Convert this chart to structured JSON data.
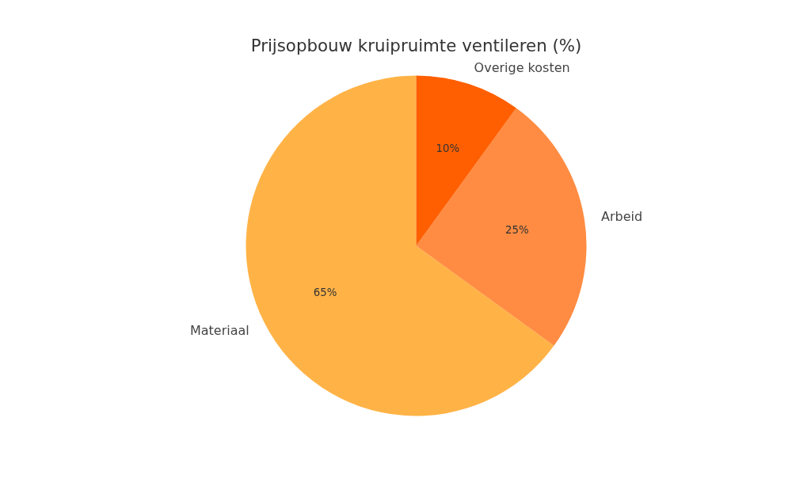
{
  "chart_data": {
    "type": "pie",
    "title": "Prijsopbouw kruipruimte ventileren (%)",
    "categories": [
      "Materiaal",
      "Arbeid",
      "Overige kosten"
    ],
    "values": [
      65,
      25,
      10
    ],
    "colors": [
      "#ffb347",
      "#ff8c42",
      "#ff5f00"
    ],
    "value_labels": [
      "65%",
      "25%",
      "10%"
    ]
  }
}
